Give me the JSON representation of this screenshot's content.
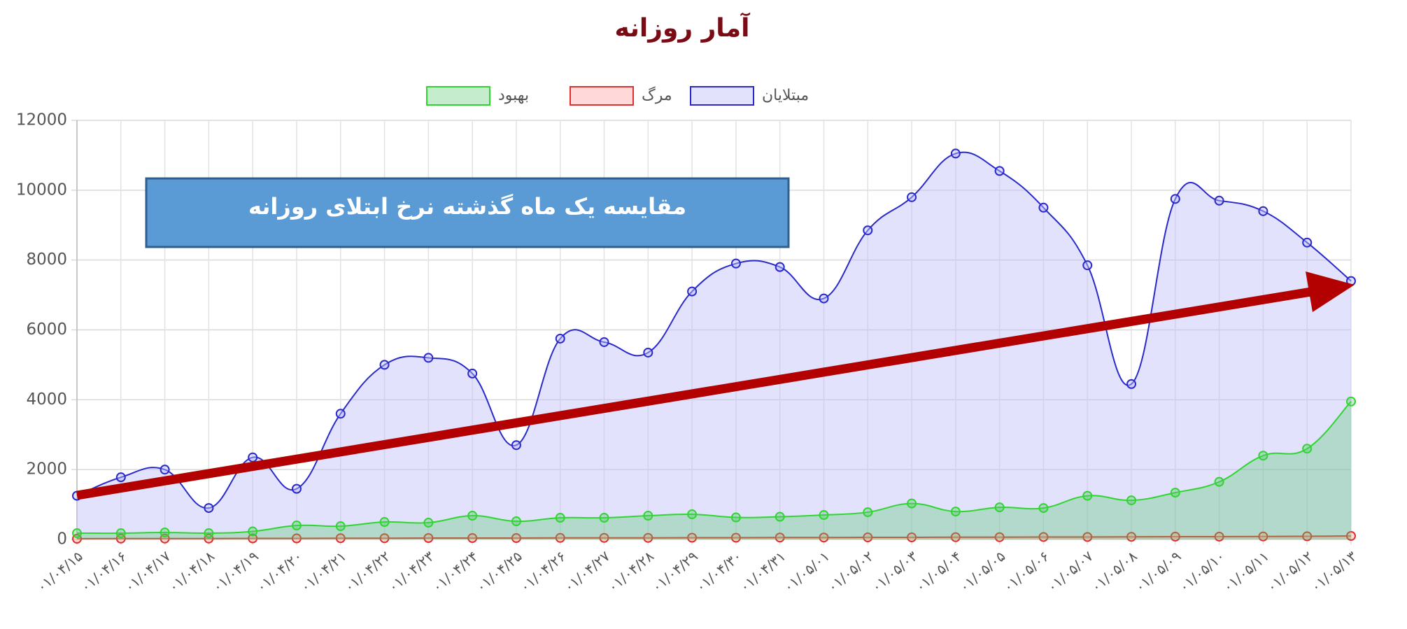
{
  "chart_data": {
    "type": "line",
    "title": "آمار روزانه",
    "annotation": "مقایسه یک ماه گذشته نرخ ابتلای روزانه",
    "categories": [
      "۰۱/۰۴/۱۵",
      "۰۱/۰۴/۱۶",
      "۰۱/۰۴/۱۷",
      "۰۱/۰۴/۱۸",
      "۰۱/۰۴/۱۹",
      "۰۱/۰۴/۲۰",
      "۰۱/۰۴/۲۱",
      "۰۱/۰۴/۲۲",
      "۰۱/۰۴/۲۳",
      "۰۱/۰۴/۲۴",
      "۰۱/۰۴/۲۵",
      "۰۱/۰۴/۲۶",
      "۰۱/۰۴/۲۷",
      "۰۱/۰۴/۲۸",
      "۰۱/۰۴/۲۹",
      "۰۱/۰۴/۳۰",
      "۰۱/۰۴/۳۱",
      "۰۱/۰۵/۰۱",
      "۰۱/۰۵/۰۲",
      "۰۱/۰۵/۰۳",
      "۰۱/۰۵/۰۴",
      "۰۱/۰۵/۰۵",
      "۰۱/۰۵/۰۶",
      "۰۱/۰۵/۰۷",
      "۰۱/۰۵/۰۸",
      "۰۱/۰۵/۰۹",
      "۰۱/۰۵/۱۰",
      "۰۱/۰۵/۱۱",
      "۰۱/۰۵/۱۲",
      "۰۱/۰۵/۱۳"
    ],
    "series": [
      {
        "name": "مبتلایان",
        "color": "#2a2acb",
        "fill": "rgba(190,190,250,0.45)",
        "values": [
          1250,
          1780,
          2000,
          900,
          2350,
          1450,
          3600,
          5000,
          5200,
          4750,
          2700,
          5750,
          5650,
          5350,
          7100,
          7900,
          7800,
          6900,
          8850,
          9800,
          11050,
          10550,
          9500,
          7850,
          4450,
          9750,
          9700,
          9400,
          8500,
          7400
        ]
      },
      {
        "name": "مرگ",
        "color": "#e03030",
        "fill": "rgba(255,170,170,0.45)",
        "values": [
          20,
          25,
          25,
          25,
          30,
          30,
          35,
          35,
          40,
          40,
          40,
          45,
          45,
          45,
          50,
          50,
          55,
          55,
          60,
          60,
          65,
          65,
          70,
          70,
          75,
          80,
          80,
          85,
          90,
          100
        ]
      },
      {
        "name": "بهبود",
        "color": "#2fd62f",
        "fill": "rgba(90,200,110,0.35)",
        "values": [
          180,
          180,
          200,
          180,
          230,
          400,
          380,
          500,
          480,
          680,
          520,
          620,
          620,
          680,
          720,
          630,
          650,
          700,
          780,
          1030,
          800,
          920,
          900,
          1250,
          1120,
          1340,
          1650,
          2400,
          2600,
          3950
        ]
      }
    ],
    "ylim": [
      0,
      12000
    ],
    "yticks": [
      0,
      2000,
      4000,
      6000,
      8000,
      10000,
      12000
    ],
    "grid": true
  }
}
